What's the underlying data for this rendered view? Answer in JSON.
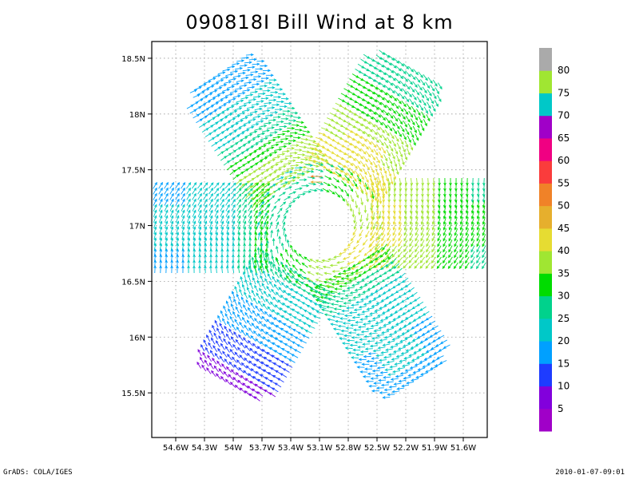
{
  "chart_data": {
    "type": "vector-field",
    "title": "090818I Bill Wind at 8 km",
    "xlabel": "",
    "ylabel": "",
    "x_ticks": [
      {
        "lon": 54.6,
        "label": "54.6W"
      },
      {
        "lon": 54.3,
        "label": "54.3W"
      },
      {
        "lon": 54.0,
        "label": "54W"
      },
      {
        "lon": 53.7,
        "label": "53.7W"
      },
      {
        "lon": 53.4,
        "label": "53.4W"
      },
      {
        "lon": 53.1,
        "label": "53.1W"
      },
      {
        "lon": 52.8,
        "label": "52.8W"
      },
      {
        "lon": 52.5,
        "label": "52.5W"
      },
      {
        "lon": 52.2,
        "label": "52.2W"
      },
      {
        "lon": 51.9,
        "label": "51.9W"
      },
      {
        "lon": 51.6,
        "label": "51.6W"
      }
    ],
    "y_ticks": [
      {
        "lat": 18.5,
        "label": "18.5N"
      },
      {
        "lat": 18.0,
        "label": "18N"
      },
      {
        "lat": 17.5,
        "label": "17.5N"
      },
      {
        "lat": 17.0,
        "label": "17N"
      },
      {
        "lat": 16.5,
        "label": "16.5N"
      },
      {
        "lat": 16.0,
        "label": "16N"
      },
      {
        "lat": 15.5,
        "label": "15.5N"
      }
    ],
    "xlim_lon_west": [
      54.85,
      51.35
    ],
    "ylim_lat_north": [
      15.1,
      18.65
    ],
    "grid": true,
    "center": {
      "lon": 53.1,
      "lat": 17.0
    },
    "legend": {
      "position": "right",
      "labels": [
        "5",
        "10",
        "15",
        "20",
        "25",
        "30",
        "35",
        "40",
        "45",
        "50",
        "55",
        "60",
        "65",
        "70",
        "75",
        "80"
      ],
      "colors": [
        "#a000c8",
        "#8200dc",
        "#1e3cff",
        "#00a0ff",
        "#00c8c8",
        "#00d28c",
        "#00dc00",
        "#a0e632",
        "#e6dc32",
        "#e6af2d",
        "#f08228",
        "#fa3c3c",
        "#f00082",
        "#a000c8",
        "#00c8c8",
        "#a0e632",
        "#aaaaaa"
      ]
    },
    "legs": [
      {
        "name": "north-northwest",
        "angle_deg": 123,
        "speeds": [
          43,
          40,
          36,
          32,
          28,
          25,
          22,
          22
        ]
      },
      {
        "name": "north-northeast",
        "angle_deg": 60,
        "speeds": [
          48,
          46,
          44,
          41,
          38,
          35,
          33,
          31
        ]
      },
      {
        "name": "east",
        "angle_deg": 0,
        "speeds": [
          47,
          44,
          42,
          40,
          38,
          36,
          34,
          32
        ]
      },
      {
        "name": "south-southeast",
        "angle_deg": -58,
        "speeds": [
          36,
          32,
          28,
          26,
          25,
          24,
          24,
          23
        ]
      },
      {
        "name": "south-southwest",
        "angle_deg": -120,
        "speeds": [
          32,
          28,
          25,
          23,
          20,
          17,
          15,
          13
        ]
      },
      {
        "name": "west",
        "angle_deg": 180,
        "speeds": [
          38,
          32,
          28,
          26,
          25,
          24,
          24,
          23
        ]
      }
    ],
    "isolated_vectors": [
      {
        "lon": 53.13,
        "lat": 17.44,
        "speed": 55
      },
      {
        "lon": 53.13,
        "lat": 17.39,
        "speed": 52
      }
    ]
  },
  "footer": {
    "credit": "GrADS: COLA/IGES",
    "timestamp": "2010-01-07-09:01"
  }
}
